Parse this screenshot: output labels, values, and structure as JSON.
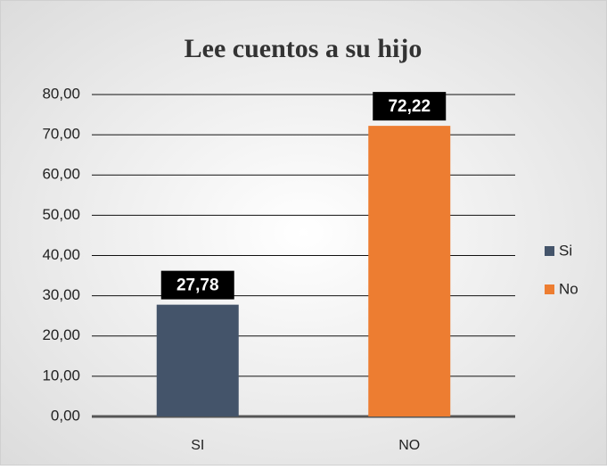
{
  "chart_data": {
    "type": "bar",
    "title": "Lee cuentos a su hijo",
    "categories": [
      "SI",
      "NO"
    ],
    "series": [
      {
        "name": "Si",
        "color": "#44546a",
        "values": [
          27.78,
          null
        ],
        "value_labels": [
          "27,78",
          null
        ]
      },
      {
        "name": "No",
        "color": "#ed7d31",
        "values": [
          null,
          72.22
        ],
        "value_labels": [
          null,
          "72,22"
        ]
      }
    ],
    "ylim": [
      0,
      80
    ],
    "yticks": [
      {
        "value": 0,
        "label": "0,00"
      },
      {
        "value": 10,
        "label": "10,00"
      },
      {
        "value": 20,
        "label": "20,00"
      },
      {
        "value": 30,
        "label": "30,00"
      },
      {
        "value": 40,
        "label": "40,00"
      },
      {
        "value": 50,
        "label": "50,00"
      },
      {
        "value": 60,
        "label": "60,00"
      },
      {
        "value": 70,
        "label": "70,00"
      },
      {
        "value": 80,
        "label": "80,00"
      }
    ],
    "grid": true,
    "legend": "right"
  }
}
